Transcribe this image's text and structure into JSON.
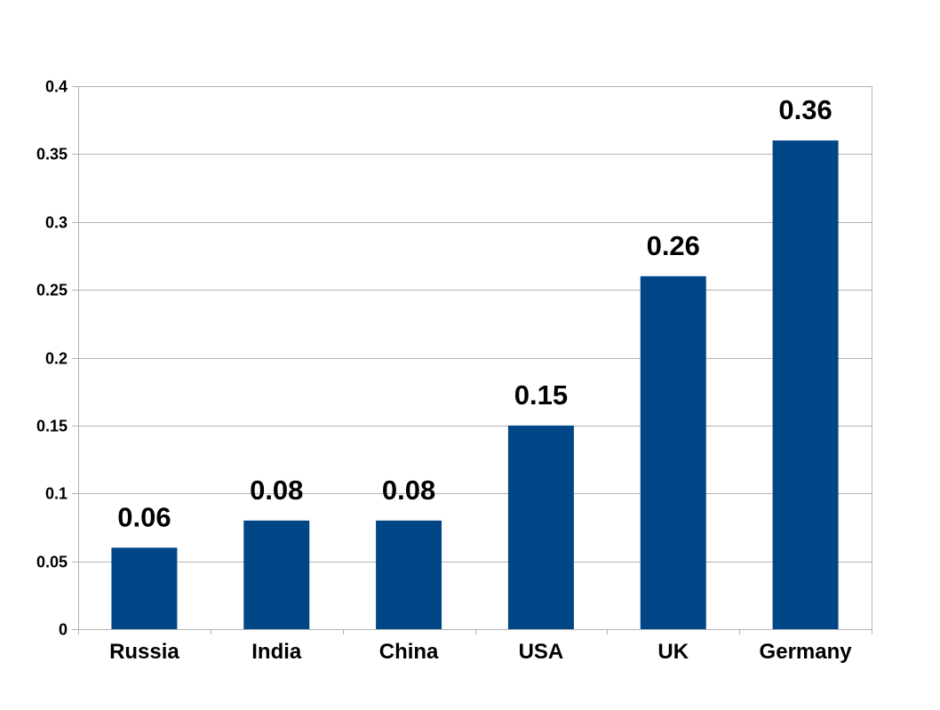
{
  "chart_data": {
    "type": "bar",
    "title": "",
    "xlabel": "",
    "ylabel": "",
    "categories": [
      "Russia",
      "India",
      "China",
      "USA",
      "UK",
      "Germany"
    ],
    "values": [
      0.06,
      0.08,
      0.08,
      0.15,
      0.26,
      0.36
    ],
    "data_labels": [
      "0.06",
      "0.08",
      "0.08",
      "0.15",
      "0.26",
      "0.36"
    ],
    "ylim": [
      0,
      0.4
    ],
    "y_ticks": [
      0,
      0.05,
      0.1,
      0.15,
      0.2,
      0.25,
      0.3,
      0.35,
      0.4
    ],
    "y_tick_labels": [
      "0",
      "0.05",
      "0.1",
      "0.15",
      "0.2",
      "0.25",
      "0.3",
      "0.35",
      "0.4"
    ],
    "grid": true,
    "legend": "none",
    "colors": {
      "bar": "#004586",
      "grid": "#b3b3b3",
      "axis": "#b3b3b3",
      "text": "#000000"
    }
  }
}
